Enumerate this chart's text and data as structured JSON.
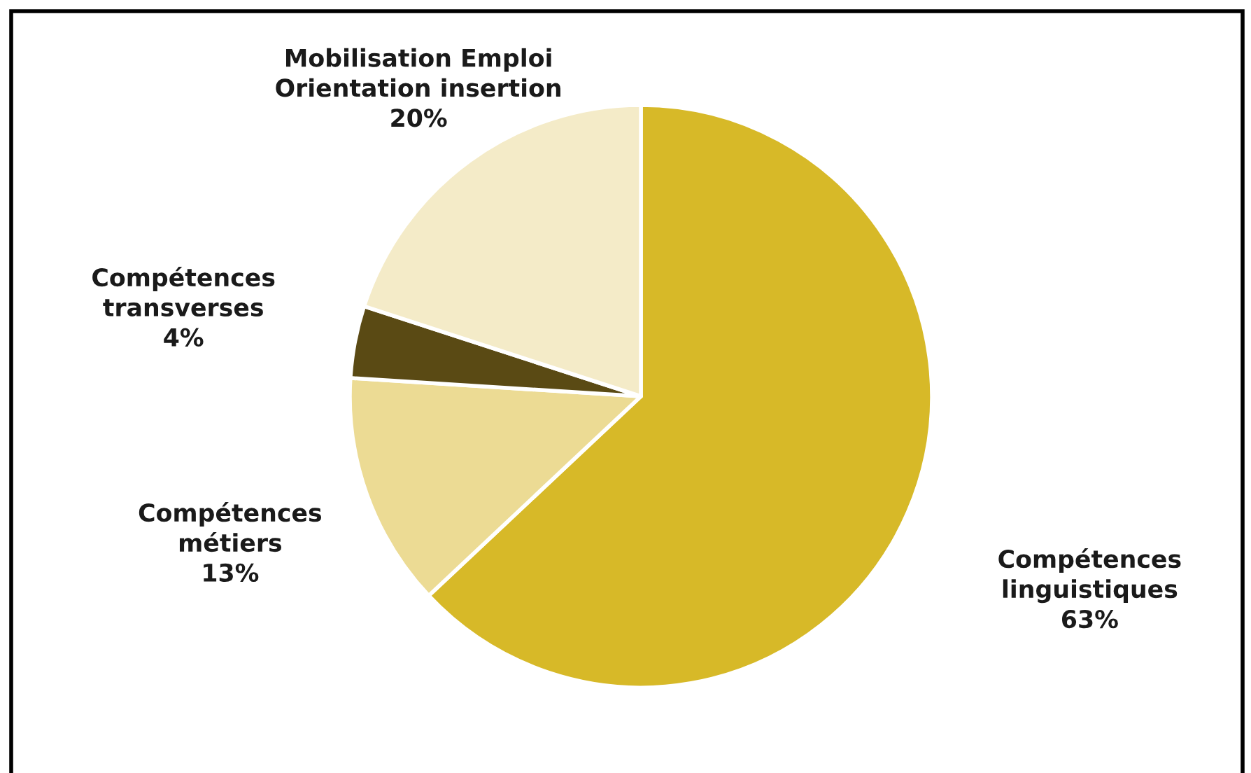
{
  "chart_data": {
    "type": "pie",
    "categories": [
      "Compétences\nlinguistiques",
      "Compétences\nmétiers",
      "Compétences\ntransverses",
      "Mobilisation Emploi\nOrientation insertion"
    ],
    "values": [
      63,
      13,
      4,
      20
    ],
    "value_labels": [
      "63%",
      "13%",
      "4%",
      "20%"
    ],
    "colors": [
      "#d7b928",
      "#ecdb94",
      "#5a4a14",
      "#f4ebc8"
    ]
  }
}
